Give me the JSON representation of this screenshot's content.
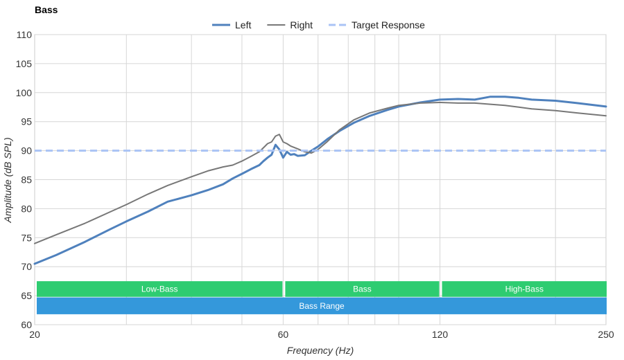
{
  "chart_data": {
    "type": "line",
    "title": "Bass",
    "xlabel": "Frequency (Hz)",
    "ylabel": "Amplitude (dB SPL)",
    "x_scale": "log",
    "xlim": [
      20,
      250
    ],
    "ylim": [
      60,
      110
    ],
    "x_ticks": [
      20,
      60,
      120,
      250
    ],
    "y_ticks": [
      60,
      65,
      70,
      75,
      80,
      85,
      90,
      95,
      100,
      105,
      110
    ],
    "x_gridlines": [
      30,
      40,
      50,
      60,
      70,
      80,
      90,
      100,
      120,
      200
    ],
    "grid": true,
    "legend_position": "top-center",
    "series": [
      {
        "name": "Left",
        "color": "#4f81bd",
        "style": "solid-thick",
        "points": [
          [
            20,
            70.5
          ],
          [
            22,
            72
          ],
          [
            25,
            74.3
          ],
          [
            28,
            76.5
          ],
          [
            30,
            77.8
          ],
          [
            33,
            79.5
          ],
          [
            36,
            81.2
          ],
          [
            40,
            82.3
          ],
          [
            43,
            83.2
          ],
          [
            46,
            84.2
          ],
          [
            48,
            85.2
          ],
          [
            50,
            86
          ],
          [
            52,
            86.8
          ],
          [
            54,
            87.5
          ],
          [
            55,
            88.2
          ],
          [
            56,
            88.8
          ],
          [
            57,
            89.3
          ],
          [
            58,
            91
          ],
          [
            59,
            90.2
          ],
          [
            60,
            88.8
          ],
          [
            61,
            89.8
          ],
          [
            62,
            89.3
          ],
          [
            63,
            89.4
          ],
          [
            64,
            89.1
          ],
          [
            66,
            89.2
          ],
          [
            68,
            90
          ],
          [
            70,
            90.7
          ],
          [
            73,
            92
          ],
          [
            77,
            93.4
          ],
          [
            82,
            94.8
          ],
          [
            88,
            96
          ],
          [
            95,
            97
          ],
          [
            100,
            97.6
          ],
          [
            110,
            98.3
          ],
          [
            120,
            98.8
          ],
          [
            130,
            98.9
          ],
          [
            140,
            98.8
          ],
          [
            150,
            99.3
          ],
          [
            160,
            99.3
          ],
          [
            170,
            99.1
          ],
          [
            180,
            98.8
          ],
          [
            200,
            98.6
          ],
          [
            220,
            98.2
          ],
          [
            250,
            97.6
          ]
        ]
      },
      {
        "name": "Right",
        "color": "#777777",
        "style": "solid",
        "points": [
          [
            20,
            74
          ],
          [
            22,
            75.5
          ],
          [
            25,
            77.5
          ],
          [
            28,
            79.5
          ],
          [
            30,
            80.7
          ],
          [
            33,
            82.5
          ],
          [
            36,
            84
          ],
          [
            40,
            85.5
          ],
          [
            43,
            86.5
          ],
          [
            46,
            87.2
          ],
          [
            48,
            87.5
          ],
          [
            50,
            88.2
          ],
          [
            52,
            89
          ],
          [
            54,
            89.8
          ],
          [
            55,
            90.5
          ],
          [
            56,
            91.2
          ],
          [
            57,
            91.5
          ],
          [
            58,
            92.5
          ],
          [
            59,
            92.8
          ],
          [
            60,
            91.5
          ],
          [
            61,
            91.2
          ],
          [
            62,
            90.8
          ],
          [
            64,
            90.3
          ],
          [
            66,
            89.8
          ],
          [
            68,
            89.6
          ],
          [
            70,
            90.2
          ],
          [
            73,
            91.6
          ],
          [
            77,
            93.6
          ],
          [
            82,
            95.3
          ],
          [
            88,
            96.5
          ],
          [
            95,
            97.3
          ],
          [
            100,
            97.8
          ],
          [
            110,
            98.2
          ],
          [
            120,
            98.3
          ],
          [
            130,
            98.2
          ],
          [
            140,
            98.2
          ],
          [
            150,
            98
          ],
          [
            160,
            97.8
          ],
          [
            170,
            97.5
          ],
          [
            180,
            97.2
          ],
          [
            200,
            96.9
          ],
          [
            220,
            96.5
          ],
          [
            250,
            96
          ]
        ]
      },
      {
        "name": "Target Response",
        "color": "#a9c3f5",
        "style": "dashed",
        "points": [
          [
            20,
            90
          ],
          [
            250,
            90
          ]
        ]
      }
    ],
    "bands": [
      {
        "label": "Low-Bass",
        "from": 20,
        "to": 60,
        "color": "#2ecc71",
        "row": 1
      },
      {
        "label": "Bass",
        "from": 60,
        "to": 120,
        "color": "#2ecc71",
        "row": 1
      },
      {
        "label": "High-Bass",
        "from": 120,
        "to": 250,
        "color": "#2ecc71",
        "row": 1
      },
      {
        "label": "Bass Range",
        "from": 20,
        "to": 250,
        "color": "#3498db",
        "row": 2
      }
    ]
  }
}
